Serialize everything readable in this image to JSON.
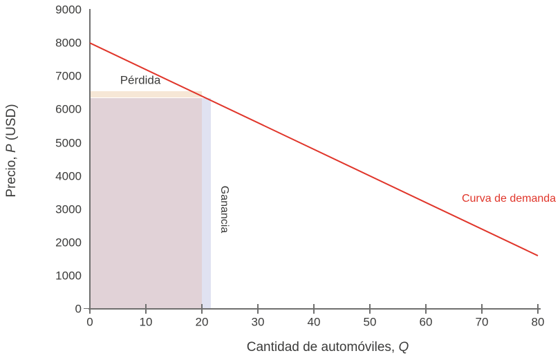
{
  "chart_data": {
    "type": "line",
    "title": "",
    "xlabel": {
      "full": "Cantidad de automóviles, Q",
      "prefix": "Cantidad de automóviles, ",
      "italic": "Q"
    },
    "ylabel": {
      "full": "Precio, P (USD)",
      "prefix": "Precio, ",
      "italic": "P",
      "suffix": " (USD)"
    },
    "xlim": [
      0,
      80
    ],
    "ylim": [
      0,
      9000
    ],
    "x_ticks": [
      0,
      10,
      20,
      30,
      40,
      50,
      60,
      70,
      80
    ],
    "y_ticks": [
      0,
      1000,
      2000,
      3000,
      4000,
      5000,
      6000,
      7000,
      8000,
      9000
    ],
    "grid": false,
    "legend_position": "none",
    "series": [
      {
        "name": "Curva de demanda",
        "type": "line",
        "color": "#e0352a",
        "x": [
          0,
          80
        ],
        "y": [
          8000,
          1600
        ]
      }
    ],
    "regions": [
      {
        "id": "revenue",
        "label": "",
        "q": [
          0,
          20
        ],
        "p": [
          0,
          6350
        ],
        "color": "#e1d2d7"
      },
      {
        "id": "perdida",
        "label": "Pérdida",
        "q": [
          0,
          20
        ],
        "p": [
          6350,
          6550
        ],
        "color": "#f6e7d6"
      },
      {
        "id": "ganancia",
        "label": "Ganancia",
        "q": [
          20,
          21.6
        ],
        "p": [
          0,
          6350
        ],
        "color": "#e0e2f1"
      }
    ],
    "annotations": [
      {
        "id": "perdida-label",
        "text": "Pérdida",
        "color": "#3b3b3a",
        "orientation": "horizontal"
      },
      {
        "id": "ganancia-label",
        "text": "Ganancia",
        "color": "#3b3b3a",
        "orientation": "vertical"
      },
      {
        "id": "demand-curve-label",
        "text": "Curva de demanda",
        "color": "#e0352a",
        "orientation": "horizontal"
      }
    ],
    "colors": {
      "axis": "#6f6f6e",
      "text": "#3b3b3a",
      "demand": "#e0352a"
    }
  }
}
